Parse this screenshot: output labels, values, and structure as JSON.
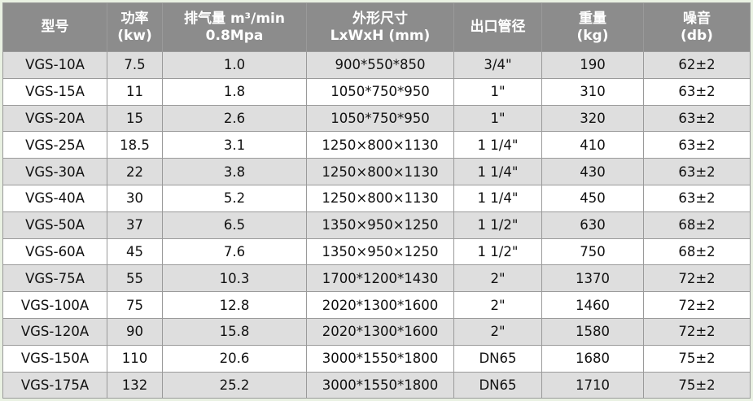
{
  "headers": [
    {
      "line1": "型号",
      "line2": ""
    },
    {
      "line1": "功率",
      "line2": "(kw)"
    },
    {
      "line1": "排气量 m³/min",
      "line2": "0.8Mpa"
    },
    {
      "line1": "外形尺寸",
      "line2": "LxWxH (mm)"
    },
    {
      "line1": "出口管径",
      "line2": ""
    },
    {
      "line1": "重量",
      "line2": "(kg)"
    },
    {
      "line1": "噪音",
      "line2": "(db)"
    }
  ],
  "rows": [
    [
      "VGS-10A",
      "7.5",
      "1.0",
      "900*550*850",
      "3/4\"",
      "190",
      "62±2"
    ],
    [
      "VGS-15A",
      "11",
      "1.8",
      "1050*750*950",
      "1\"",
      "310",
      "63±2"
    ],
    [
      "VGS-20A",
      "15",
      "2.6",
      "1050*750*950",
      "1\"",
      "320",
      "63±2"
    ],
    [
      "VGS-25A",
      "18.5",
      "3.1",
      "1250×800×1130",
      "1 1/4\"",
      "410",
      "63±2"
    ],
    [
      "VGS-30A",
      "22",
      "3.8",
      "1250×800×1130",
      "1 1/4\"",
      "430",
      "63±2"
    ],
    [
      "VGS-40A",
      "30",
      "5.2",
      "1250×800×1130",
      "1 1/4\"",
      "450",
      "63±2"
    ],
    [
      "VGS-50A",
      "37",
      "6.5",
      "1350×950×1250",
      "1 1/2\"",
      "630",
      "68±2"
    ],
    [
      "VGS-60A",
      "45",
      "7.6",
      "1350×950×1250",
      "1 1/2\"",
      "750",
      "68±2"
    ],
    [
      "VGS-75A",
      "55",
      "10.3",
      "1700*1200*1430",
      "2\"",
      "1370",
      "72±2"
    ],
    [
      "VGS-100A",
      "75",
      "12.8",
      "2020*1300*1600",
      "2\"",
      "1460",
      "72±2"
    ],
    [
      "VGS-120A",
      "90",
      "15.8",
      "2020*1300*1600",
      "2\"",
      "1580",
      "72±2"
    ],
    [
      "VGS-150A",
      "110",
      "20.6",
      "3000*1550*1800",
      "DN65",
      "1680",
      "75±2"
    ],
    [
      "VGS-175A",
      "132",
      "25.2",
      "3000*1550*1800",
      "DN65",
      "1710",
      "75±2"
    ]
  ]
}
